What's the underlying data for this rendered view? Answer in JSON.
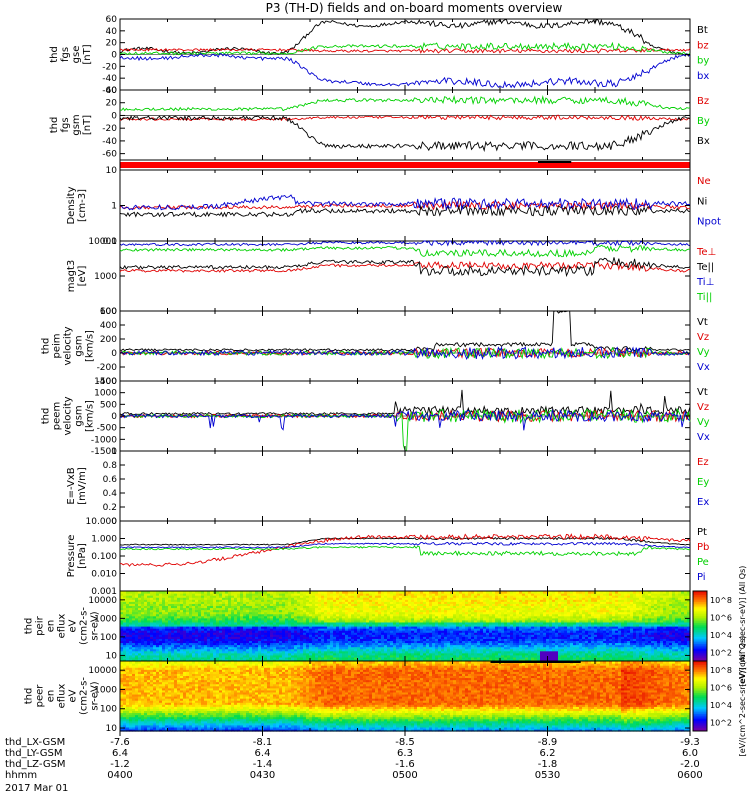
{
  "title": "P3 (TH-D) fields and on-board moments overview",
  "date_label": "2017 Mar 01",
  "colors": {
    "black": "#000000",
    "red": "#e00000",
    "green": "#00d000",
    "blue": "#0000d0",
    "cyan": "#00d0d0"
  },
  "chart_data": [
    {
      "type": "line",
      "id": "fgs_gse",
      "ylabel": [
        "thd",
        "fgs",
        "gse",
        "[nT]"
      ],
      "ylim": [
        -60,
        60
      ],
      "yticks": [
        60,
        40,
        20,
        0,
        -20,
        -40,
        -60
      ],
      "series": [
        {
          "name": "Bt",
          "color": "black",
          "profile": "bt"
        },
        {
          "name": "bz",
          "color": "red",
          "profile": "bz"
        },
        {
          "name": "by",
          "color": "green",
          "profile": "by"
        },
        {
          "name": "bx",
          "color": "blue",
          "profile": "bx"
        }
      ]
    },
    {
      "type": "line",
      "id": "fgs_gsm",
      "ylabel": [
        "thd",
        "fgs",
        "gsm",
        "[nT]"
      ],
      "ylim": [
        -70,
        40
      ],
      "yticks": [
        40,
        20,
        0,
        -20,
        -40,
        -60
      ],
      "series": [
        {
          "name": "Bz",
          "color": "red",
          "profile": "bz2"
        },
        {
          "name": "By",
          "color": "green",
          "profile": "by2"
        },
        {
          "name": "Bx",
          "color": "black",
          "profile": "bx2"
        }
      ]
    },
    {
      "type": "bar",
      "id": "mode_bar",
      "ylabel": [],
      "ylim": [
        0,
        1
      ],
      "yticks": [],
      "series": []
    },
    {
      "type": "line",
      "id": "density",
      "ylabel": [
        "Density",
        "[cm-3]"
      ],
      "scale": "log",
      "ylim": [
        0.1,
        10
      ],
      "yticks": [
        10.0,
        1.0,
        0.1
      ],
      "series": [
        {
          "name": "Ne",
          "color": "red",
          "profile": "ne"
        },
        {
          "name": "Ni",
          "color": "black",
          "profile": "ni"
        },
        {
          "name": "Npot",
          "color": "blue",
          "profile": "npot"
        }
      ]
    },
    {
      "type": "line",
      "id": "temperature",
      "ylabel": [
        "magt3",
        "[eV]"
      ],
      "scale": "log",
      "ylim": [
        100,
        10000
      ],
      "yticks": [
        10000,
        1000,
        100
      ],
      "series": [
        {
          "name": "Te⊥",
          "color": "red",
          "profile": "teperp"
        },
        {
          "name": "Te||",
          "color": "black",
          "profile": "tepar"
        },
        {
          "name": "Ti⊥",
          "color": "blue",
          "profile": "tiperp"
        },
        {
          "name": "Ti||",
          "color": "green",
          "profile": "tipar"
        }
      ]
    },
    {
      "type": "line",
      "id": "peim_velocity",
      "ylabel": [
        "thd",
        "peim",
        "velocity",
        "gsm",
        "[km/s]"
      ],
      "ylim": [
        -400,
        600
      ],
      "yticks": [
        600,
        400,
        200,
        0,
        -200,
        -400
      ],
      "series": [
        {
          "name": "Vt",
          "color": "black",
          "profile": "vit"
        },
        {
          "name": "Vz",
          "color": "red",
          "profile": "viz"
        },
        {
          "name": "Vy",
          "color": "green",
          "profile": "viy"
        },
        {
          "name": "Vx",
          "color": "blue",
          "profile": "vix"
        }
      ]
    },
    {
      "type": "line",
      "id": "peem_velocity",
      "ylabel": [
        "thd",
        "peem",
        "velocity",
        "gsm",
        "[km/s]"
      ],
      "ylim": [
        -1500,
        1500
      ],
      "yticks": [
        1500,
        1000,
        500,
        0,
        -500,
        -1000,
        -1500
      ],
      "series": [
        {
          "name": "Vt",
          "color": "black",
          "profile": "vet"
        },
        {
          "name": "Vz",
          "color": "red",
          "profile": "vez"
        },
        {
          "name": "Vy",
          "color": "green",
          "profile": "vey"
        },
        {
          "name": "Vx",
          "color": "blue",
          "profile": "vex"
        }
      ]
    },
    {
      "type": "line",
      "id": "efield",
      "ylabel": [
        "E=-VxB",
        "[mV/m]"
      ],
      "ylim": [
        0,
        1
      ],
      "yticks": [
        1.0,
        0.8,
        0.6,
        0.4,
        0.2,
        0.0
      ],
      "series": [
        {
          "name": "Ez",
          "color": "red",
          "profile": "none"
        },
        {
          "name": "Ey",
          "color": "green",
          "profile": "none"
        },
        {
          "name": "Ex",
          "color": "blue",
          "profile": "none"
        }
      ]
    },
    {
      "type": "line",
      "id": "pressure",
      "ylabel": [
        "Pressure",
        "[nPa]"
      ],
      "scale": "log",
      "ylim": [
        0.001,
        10
      ],
      "yticks": [
        10.0,
        1.0,
        0.1,
        0.01,
        0.001
      ],
      "ytick_labels": [
        "10.000",
        "1.000",
        "0.100",
        "0.010",
        "0.001"
      ],
      "series": [
        {
          "name": "Pt",
          "color": "black",
          "profile": "pt"
        },
        {
          "name": "Pb",
          "color": "red",
          "profile": "pb"
        },
        {
          "name": "Pe",
          "color": "green",
          "profile": "pe"
        },
        {
          "name": "Pi",
          "color": "blue",
          "profile": "pi"
        }
      ]
    },
    {
      "type": "heatmap",
      "id": "peir_spec",
      "ylabel": [
        "thd",
        "peir",
        "en",
        "eflux",
        "eV",
        "(cm2-s-",
        "sr-eV)"
      ],
      "scale": "log",
      "ylim": [
        5,
        30000
      ],
      "yticks": [
        10000,
        1000,
        100,
        10
      ],
      "colorbar": {
        "label": "[eV/(cm^2-sec-sr-eV)] (All Qs)",
        "ticks": [
          "10^8",
          "10^6",
          "10^4",
          "10^2"
        ],
        "ticks_values": [
          8,
          6,
          4,
          2
        ]
      },
      "pattern": "ion"
    },
    {
      "type": "heatmap",
      "id": "peer_spec",
      "ylabel": [
        "thd",
        "peer",
        "en",
        "eflux",
        "eV",
        "(cm2-s-",
        "sr-eV)"
      ],
      "scale": "log",
      "ylim": [
        7,
        30000
      ],
      "yticks": [
        10000,
        1000,
        100,
        10
      ],
      "colorbar": {
        "label": "[eV/(cm^2-sec-sr-eV)] (All Qs)",
        "ticks": [
          "10^8",
          "10^6",
          "10^4",
          "10^2"
        ],
        "ticks_values": [
          8,
          6,
          4,
          2
        ]
      },
      "pattern": "electron"
    }
  ],
  "x_axis": {
    "time_minutes": [
      0,
      30,
      60,
      90,
      120
    ],
    "rows": [
      {
        "label": "thd_LX-GSM",
        "values": [
          "-7.6",
          "-8.1",
          "-8.5",
          "-8.9",
          "-9.3"
        ]
      },
      {
        "label": "thd_LY-GSM",
        "values": [
          "6.4",
          "6.4",
          "6.3",
          "6.2",
          "6.0"
        ]
      },
      {
        "label": "thd_LZ-GSM",
        "values": [
          "-1.2",
          "-1.4",
          "-1.6",
          "-1.8",
          "-2.0"
        ]
      },
      {
        "label": "hhmm",
        "values": [
          "0400",
          "0430",
          "0500",
          "0530",
          "0600"
        ]
      }
    ]
  }
}
